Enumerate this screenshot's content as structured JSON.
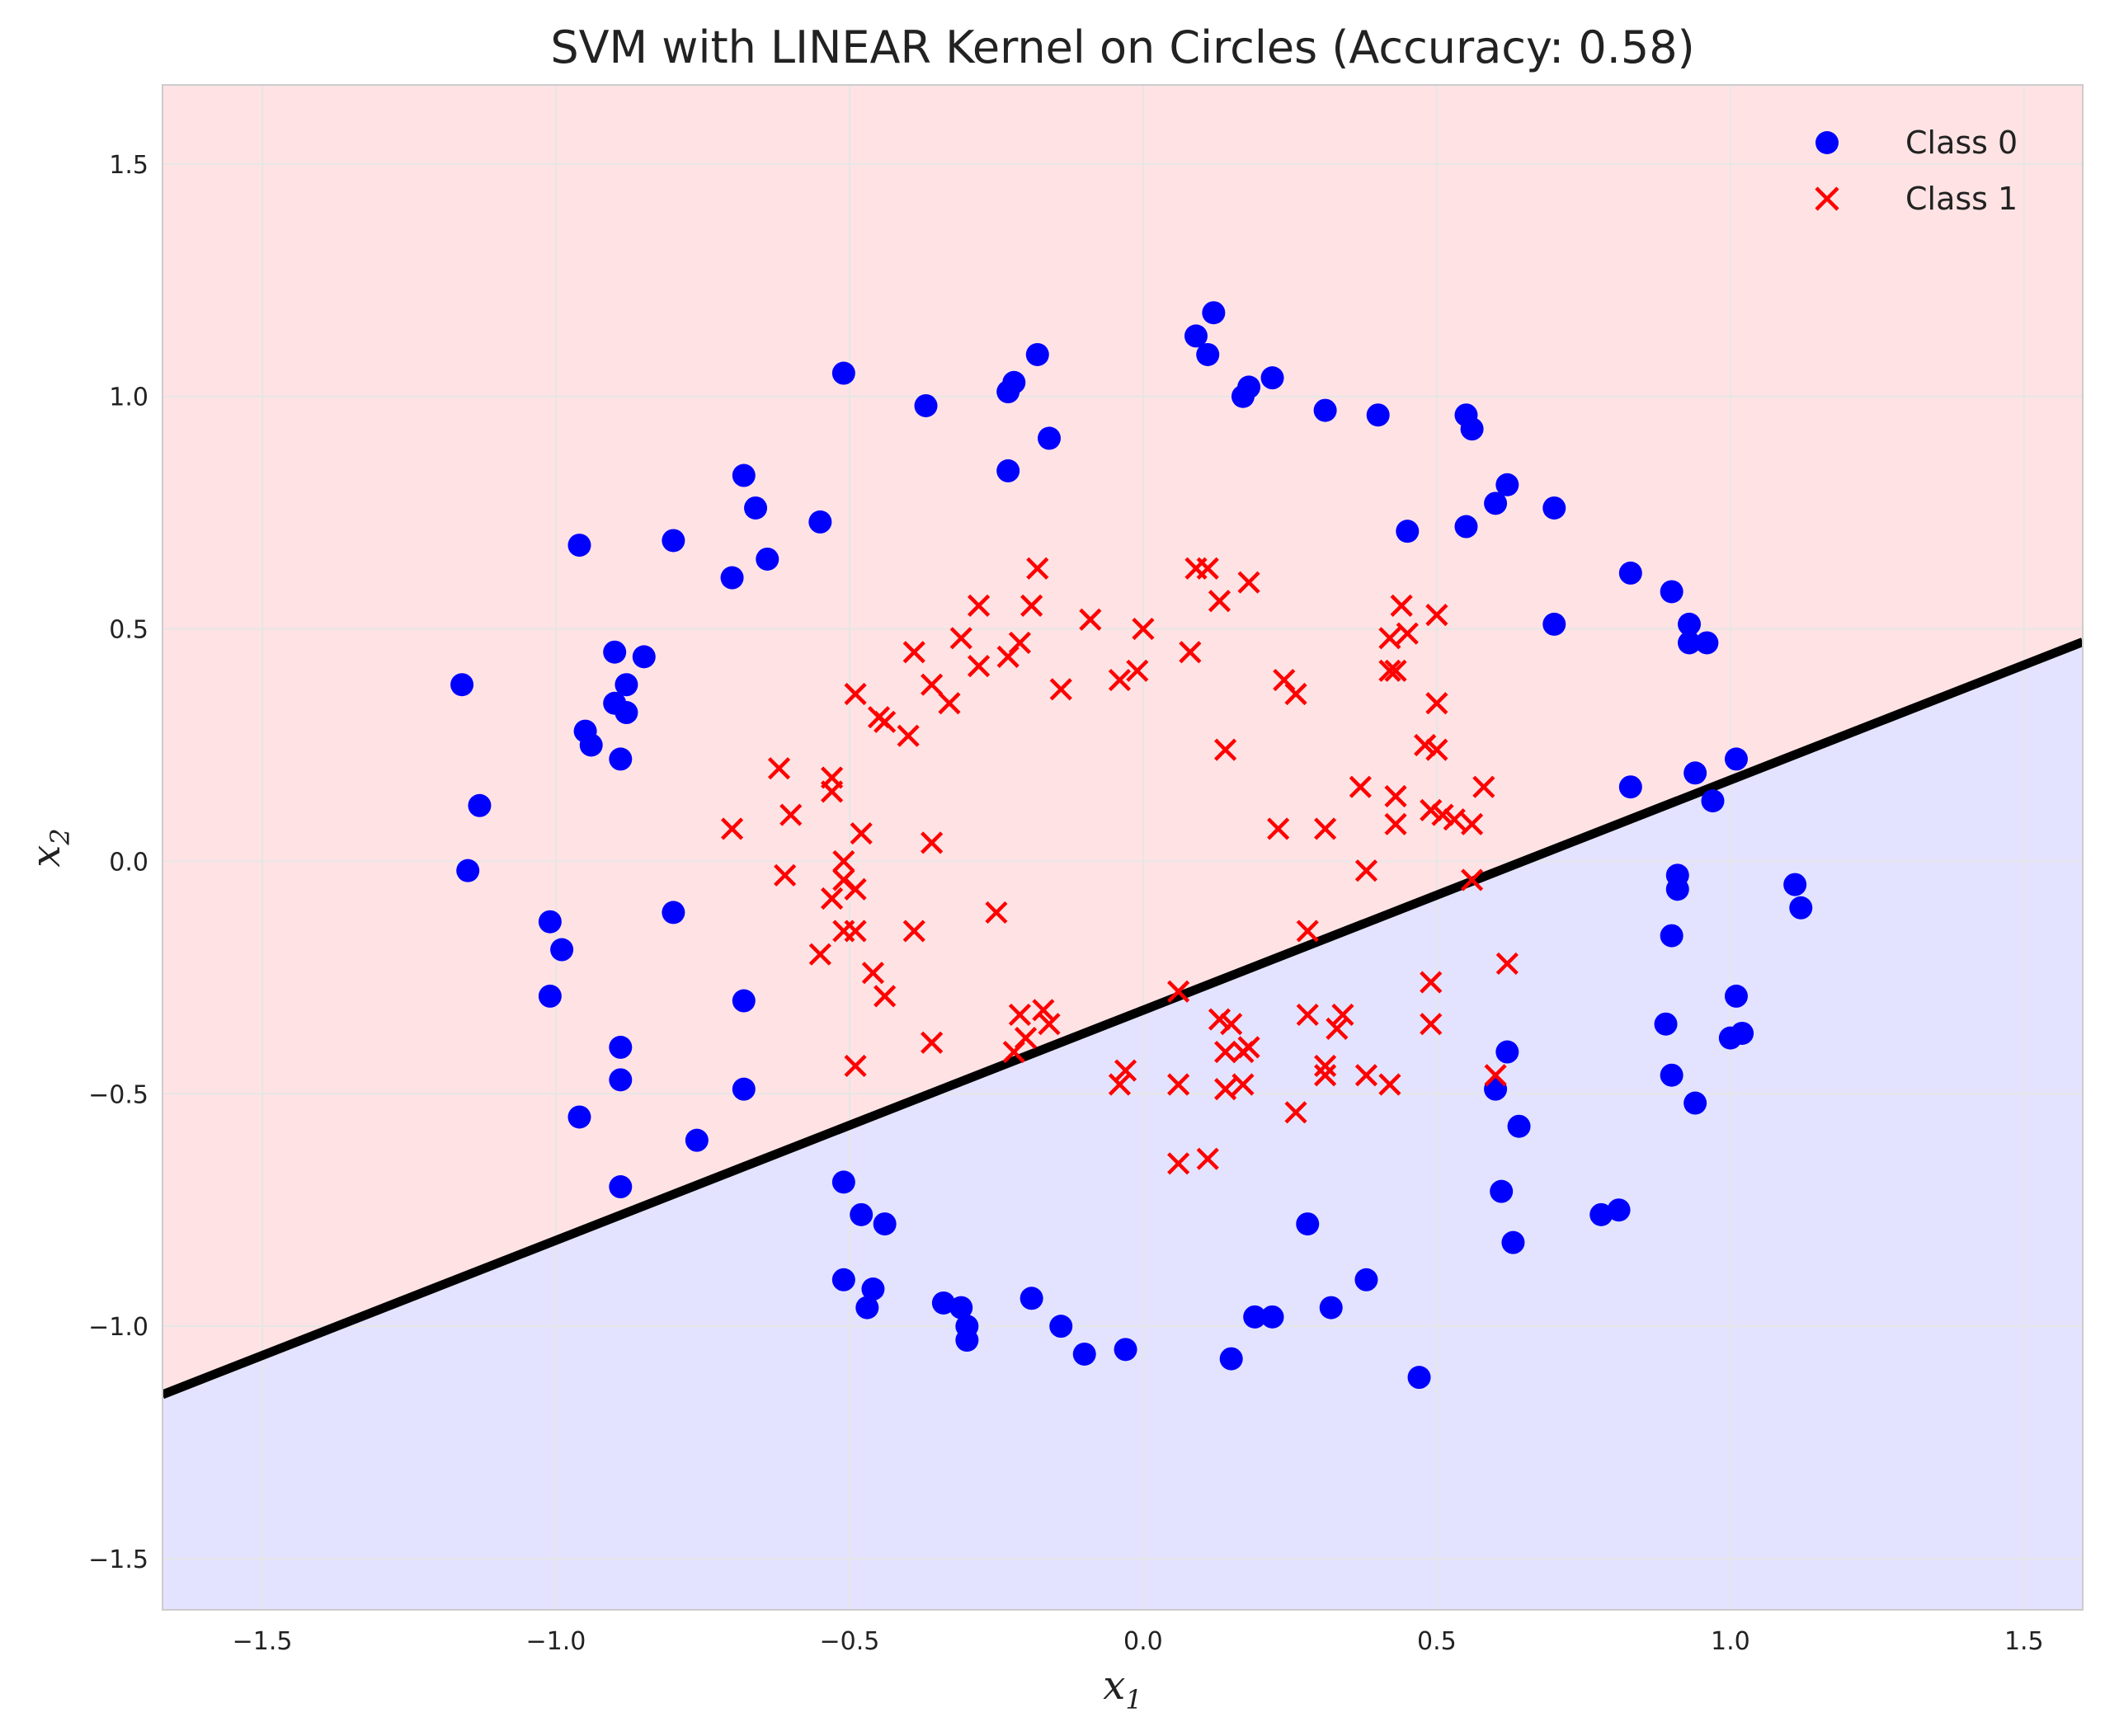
{
  "chart_data": {
    "type": "scatter",
    "title": "SVM with LINEAR Kernel on Circles (Accuracy: 0.58)",
    "xlabel": "x",
    "xlabel_sub": "1",
    "ylabel": "x",
    "ylabel_sub": "2",
    "xlim": [
      -1.67,
      1.6
    ],
    "ylim": [
      -1.61,
      1.67
    ],
    "xticks": [
      -1.5,
      -1.0,
      -0.5,
      0.0,
      0.5,
      1.0,
      1.5
    ],
    "yticks": [
      -1.5,
      -1.0,
      -0.5,
      0.0,
      0.5,
      1.0,
      1.5
    ],
    "xtick_labels": [
      "−1.5",
      "−1.0",
      "−0.5",
      "0.0",
      "0.5",
      "1.0",
      "1.5"
    ],
    "ytick_labels": [
      "−1.5",
      "−1.0",
      "−0.5",
      "0.0",
      "0.5",
      "1.0",
      "1.5"
    ],
    "grid": true,
    "legend_position": "top-right",
    "colors": {
      "class0": "#0000ff",
      "class1": "#ff0000",
      "region_upper": "#ffe3e4",
      "region_lower": "#e3e3ff",
      "boundary": "#000000",
      "grid": "#e6e6e6",
      "frame": "#cccccc"
    },
    "decision_boundary": {
      "equation": "x2 = 0.495*x1 - 0.32",
      "points": [
        [
          -1.67,
          -1.147
        ],
        [
          1.6,
          0.472
        ]
      ]
    },
    "series": [
      {
        "name": "Class 0",
        "marker": "circle",
        "color": "#0000ff",
        "points": [
          [
            -0.51,
            1.05
          ],
          [
            -0.37,
            0.98
          ],
          [
            -0.23,
            1.01
          ],
          [
            -0.22,
            1.03
          ],
          [
            -0.18,
            1.09
          ],
          [
            -0.16,
            0.91
          ],
          [
            -0.23,
            0.84
          ],
          [
            0.09,
            1.13
          ],
          [
            0.12,
            1.18
          ],
          [
            0.11,
            1.09
          ],
          [
            0.17,
            1.0
          ],
          [
            0.18,
            1.02
          ],
          [
            0.22,
            1.04
          ],
          [
            0.31,
            0.97
          ],
          [
            0.4,
            0.96
          ],
          [
            0.55,
            0.96
          ],
          [
            0.56,
            0.93
          ],
          [
            0.62,
            0.81
          ],
          [
            0.6,
            0.77
          ],
          [
            0.7,
            0.76
          ],
          [
            0.45,
            0.71
          ],
          [
            0.55,
            0.72
          ],
          [
            0.83,
            0.62
          ],
          [
            0.9,
            0.58
          ],
          [
            0.93,
            0.51
          ],
          [
            0.93,
            0.47
          ],
          [
            0.96,
            0.47
          ],
          [
            0.7,
            0.51
          ],
          [
            -0.68,
            0.83
          ],
          [
            -0.66,
            0.76
          ],
          [
            -0.55,
            0.73
          ],
          [
            -0.64,
            0.65
          ],
          [
            -0.7,
            0.61
          ],
          [
            -0.8,
            0.69
          ],
          [
            -0.96,
            0.68
          ],
          [
            -1.16,
            0.38
          ],
          [
            -0.9,
            0.45
          ],
          [
            -0.85,
            0.44
          ],
          [
            -0.88,
            0.38
          ],
          [
            -0.9,
            0.34
          ],
          [
            -0.88,
            0.32
          ],
          [
            -0.95,
            0.28
          ],
          [
            -0.94,
            0.25
          ],
          [
            -0.89,
            0.22
          ],
          [
            -1.13,
            0.12
          ],
          [
            -1.15,
            -0.02
          ],
          [
            -1.01,
            -0.13
          ],
          [
            -0.99,
            -0.19
          ],
          [
            -0.8,
            -0.11
          ],
          [
            -1.01,
            -0.29
          ],
          [
            -0.68,
            -0.3
          ],
          [
            -0.89,
            -0.4
          ],
          [
            -0.89,
            -0.47
          ],
          [
            -0.96,
            -0.55
          ],
          [
            -0.68,
            -0.49
          ],
          [
            -0.76,
            -0.6
          ],
          [
            -0.89,
            -0.7
          ],
          [
            0.83,
            0.16
          ],
          [
            0.94,
            0.19
          ],
          [
            0.97,
            0.13
          ],
          [
            1.01,
            0.22
          ],
          [
            0.91,
            -0.03
          ],
          [
            0.91,
            -0.06
          ],
          [
            0.9,
            -0.16
          ],
          [
            1.11,
            -0.05
          ],
          [
            1.12,
            -0.1
          ],
          [
            1.01,
            -0.29
          ],
          [
            1.0,
            -0.38
          ],
          [
            1.02,
            -0.37
          ],
          [
            0.89,
            -0.35
          ],
          [
            0.9,
            -0.46
          ],
          [
            0.94,
            -0.52
          ],
          [
            0.62,
            -0.41
          ],
          [
            0.6,
            -0.49
          ],
          [
            0.64,
            -0.57
          ],
          [
            0.61,
            -0.71
          ],
          [
            0.63,
            -0.82
          ],
          [
            0.78,
            -0.76
          ],
          [
            0.81,
            -0.75
          ],
          [
            -0.51,
            -0.69
          ],
          [
            -0.48,
            -0.76
          ],
          [
            -0.44,
            -0.78
          ],
          [
            -0.51,
            -0.9
          ],
          [
            -0.46,
            -0.92
          ],
          [
            -0.47,
            -0.96
          ],
          [
            -0.34,
            -0.95
          ],
          [
            -0.31,
            -0.96
          ],
          [
            -0.3,
            -1.0
          ],
          [
            -0.3,
            -1.03
          ],
          [
            -0.19,
            -0.94
          ],
          [
            -0.14,
            -1.0
          ],
          [
            -0.1,
            -1.06
          ],
          [
            -0.03,
            -1.05
          ],
          [
            0.15,
            -1.07
          ],
          [
            0.19,
            -0.98
          ],
          [
            0.22,
            -0.98
          ],
          [
            0.28,
            -0.78
          ],
          [
            0.32,
            -0.96
          ],
          [
            0.38,
            -0.9
          ],
          [
            0.47,
            -1.11
          ]
        ]
      },
      {
        "name": "Class 1",
        "marker": "x",
        "color": "#ff0000",
        "points": [
          [
            -0.18,
            0.63
          ],
          [
            0.09,
            0.63
          ],
          [
            0.11,
            0.63
          ],
          [
            0.18,
            0.6
          ],
          [
            0.13,
            0.56
          ],
          [
            -0.28,
            0.55
          ],
          [
            -0.19,
            0.55
          ],
          [
            -0.31,
            0.48
          ],
          [
            -0.21,
            0.47
          ],
          [
            -0.23,
            0.44
          ],
          [
            -0.28,
            0.42
          ],
          [
            -0.39,
            0.45
          ],
          [
            -0.09,
            0.52
          ],
          [
            0.0,
            0.5
          ],
          [
            0.08,
            0.45
          ],
          [
            -0.01,
            0.41
          ],
          [
            -0.04,
            0.39
          ],
          [
            -0.14,
            0.37
          ],
          [
            -0.36,
            0.38
          ],
          [
            -0.33,
            0.34
          ],
          [
            -0.49,
            0.36
          ],
          [
            -0.45,
            0.31
          ],
          [
            -0.44,
            0.3
          ],
          [
            -0.4,
            0.27
          ],
          [
            0.14,
            0.24
          ],
          [
            0.24,
            0.39
          ],
          [
            0.26,
            0.36
          ],
          [
            0.44,
            0.55
          ],
          [
            0.5,
            0.53
          ],
          [
            0.42,
            0.48
          ],
          [
            0.45,
            0.49
          ],
          [
            0.42,
            0.41
          ],
          [
            0.43,
            0.41
          ],
          [
            0.5,
            0.34
          ],
          [
            0.48,
            0.25
          ],
          [
            0.5,
            0.24
          ],
          [
            0.37,
            0.16
          ],
          [
            0.43,
            0.14
          ],
          [
            0.58,
            0.16
          ],
          [
            0.49,
            0.11
          ],
          [
            0.51,
            0.1
          ],
          [
            0.53,
            0.09
          ],
          [
            0.56,
            0.08
          ],
          [
            0.43,
            0.08
          ],
          [
            0.23,
            0.07
          ],
          [
            0.31,
            0.07
          ],
          [
            0.38,
            -0.02
          ],
          [
            0.56,
            -0.04
          ],
          [
            -0.62,
            0.2
          ],
          [
            -0.53,
            0.18
          ],
          [
            -0.53,
            0.15
          ],
          [
            -0.6,
            0.1
          ],
          [
            -0.7,
            0.07
          ],
          [
            -0.48,
            0.06
          ],
          [
            -0.36,
            0.04
          ],
          [
            -0.51,
            0.0
          ],
          [
            -0.61,
            -0.03
          ],
          [
            -0.51,
            -0.04
          ],
          [
            -0.49,
            -0.06
          ],
          [
            -0.53,
            -0.08
          ],
          [
            -0.51,
            -0.15
          ],
          [
            -0.49,
            -0.15
          ],
          [
            -0.39,
            -0.15
          ],
          [
            -0.25,
            -0.11
          ],
          [
            -0.55,
            -0.2
          ],
          [
            -0.46,
            -0.24
          ],
          [
            -0.44,
            -0.29
          ],
          [
            0.28,
            -0.15
          ],
          [
            0.06,
            -0.28
          ],
          [
            0.13,
            -0.34
          ],
          [
            0.15,
            -0.35
          ],
          [
            0.28,
            -0.33
          ],
          [
            0.34,
            -0.33
          ],
          [
            0.33,
            -0.36
          ],
          [
            0.49,
            -0.26
          ],
          [
            0.49,
            -0.35
          ],
          [
            0.62,
            -0.22
          ],
          [
            -0.21,
            -0.33
          ],
          [
            -0.17,
            -0.32
          ],
          [
            -0.16,
            -0.35
          ],
          [
            -0.2,
            -0.38
          ],
          [
            -0.22,
            -0.41
          ],
          [
            -0.36,
            -0.39
          ],
          [
            -0.49,
            -0.44
          ],
          [
            0.14,
            -0.41
          ],
          [
            0.17,
            -0.41
          ],
          [
            0.18,
            -0.4
          ],
          [
            0.14,
            -0.49
          ],
          [
            0.17,
            -0.48
          ],
          [
            0.31,
            -0.44
          ],
          [
            0.31,
            -0.46
          ],
          [
            0.38,
            -0.46
          ],
          [
            0.42,
            -0.48
          ],
          [
            -0.03,
            -0.45
          ],
          [
            -0.04,
            -0.48
          ],
          [
            0.06,
            -0.48
          ],
          [
            0.26,
            -0.54
          ],
          [
            0.06,
            -0.65
          ],
          [
            0.11,
            -0.64
          ],
          [
            0.6,
            -0.46
          ]
        ]
      }
    ]
  }
}
